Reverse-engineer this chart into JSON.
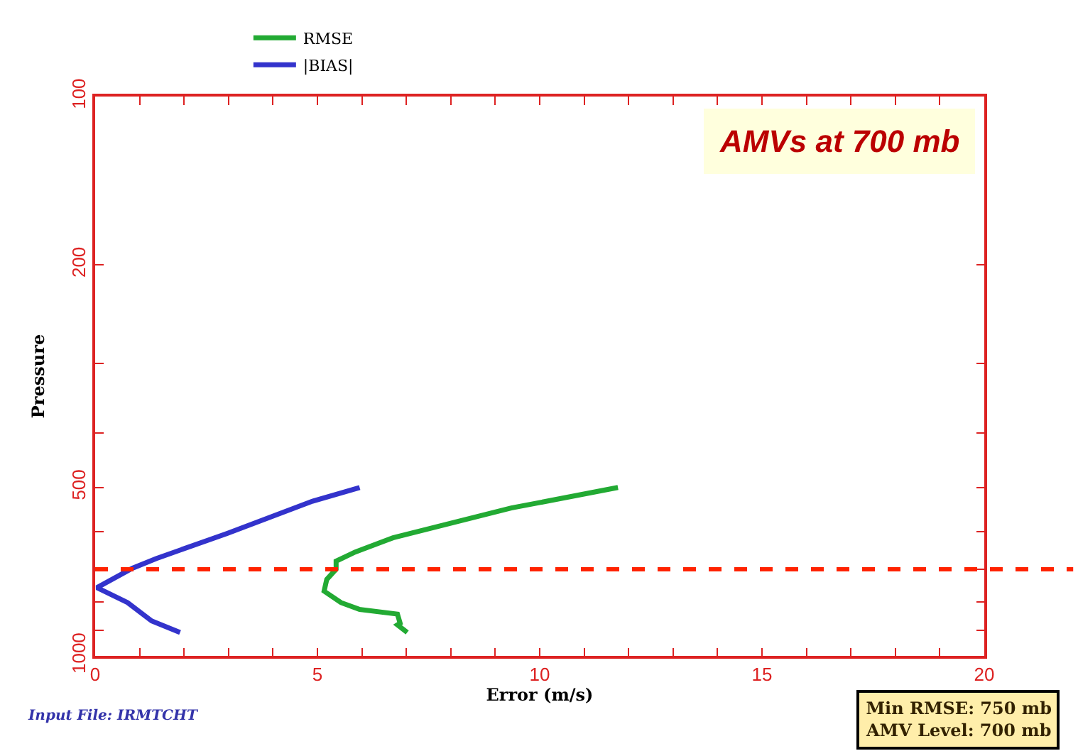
{
  "chart_data": {
    "type": "line",
    "xlabel": "Error (m/s)",
    "ylabel": "Pressure",
    "log": "y",
    "legend": "top",
    "marker": "none",
    "line_style": "solid",
    "xlim": [
      0,
      20
    ],
    "ylim": [
      1000,
      100
    ],
    "xticks": [
      0,
      {
        "value": 1,
        "label": null
      },
      {
        "value": 2,
        "label": null
      },
      {
        "value": 3,
        "label": null
      },
      {
        "value": 4,
        "label": null
      },
      5,
      {
        "value": 6,
        "label": null
      },
      {
        "value": 7,
        "label": null
      },
      {
        "value": 8,
        "label": null
      },
      {
        "value": 9,
        "label": null
      },
      10,
      {
        "value": 11,
        "label": null
      },
      {
        "value": 12,
        "label": null
      },
      {
        "value": 13,
        "label": null
      },
      {
        "value": 14,
        "label": null
      },
      15,
      {
        "value": 16,
        "label": null
      },
      {
        "value": 17,
        "label": null
      },
      {
        "value": 18,
        "label": null
      },
      {
        "value": 19,
        "label": null
      },
      20
    ],
    "yticks": [
      100,
      200,
      {
        "value": 300,
        "label": null
      },
      {
        "value": 400,
        "label": null
      },
      500,
      {
        "value": 600,
        "label": null
      },
      {
        "value": 700,
        "label": null
      },
      {
        "value": 800,
        "label": null
      },
      {
        "value": 900,
        "label": null
      },
      1000
    ],
    "series": [
      {
        "name": "RMSE",
        "color": "#22aa33",
        "x": [
          11.76,
          9.36,
          6.7,
          5.85,
          5.42,
          5.42,
          5.21,
          5.15,
          5.53,
          5.95,
          6.8,
          6.86,
          6.8,
          7.02
        ],
        "values": [
          500,
          544,
          615,
          652,
          677,
          700,
          730,
          766,
          803,
          826,
          842,
          874,
          880,
          908
        ]
      },
      {
        "name": "|BIAS|",
        "color": "#3333cc",
        "x": [
          5.95,
          4.89,
          2.97,
          1.37,
          0.84,
          0.04,
          0.73,
          1.27,
          1.91
        ],
        "values": [
          500,
          529,
          604,
          670,
          697,
          755,
          803,
          866,
          908
        ]
      }
    ],
    "ref_lines": [
      {
        "axis": "y",
        "value": 700,
        "color": "#ff2200",
        "line_style": "dashed"
      }
    ],
    "annotations": [
      "AMVs at 700 mb",
      "Min RMSE: 750 mb\nAMV Level: 700 mb",
      "Input File: IRMTCHT"
    ]
  }
}
